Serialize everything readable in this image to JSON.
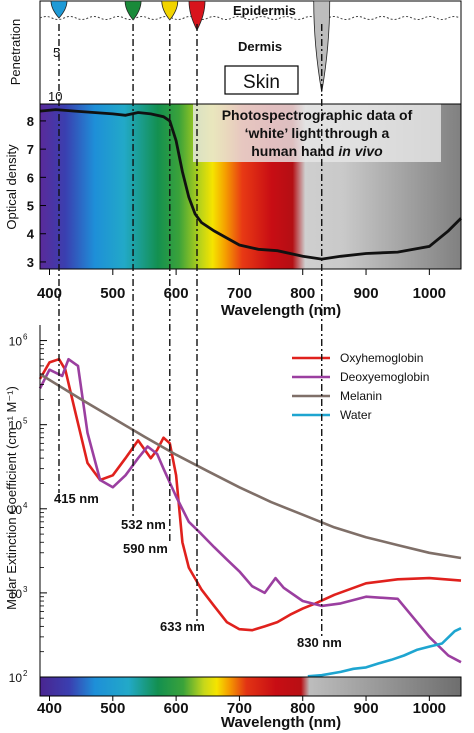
{
  "chart_data": [
    {
      "type": "diagram",
      "ylabel": "Penetration",
      "y_ticks": [
        "5",
        "10"
      ],
      "layers": [
        "Epidermis",
        "Dermis"
      ],
      "box_label": "Skin",
      "wavelengths_nm": [
        415,
        532,
        590,
        633,
        830
      ],
      "marker_colors": [
        "#1f9ad6",
        "#1a8a3a",
        "#f2d400",
        "#d8141c",
        "#bdbdbd"
      ]
    },
    {
      "type": "line",
      "title_lines": [
        "Photospectrographic data of",
        "‘white’ light through a"
      ],
      "title_last_prefix": "human hand ",
      "title_last_italic": "in vivo",
      "xlabel": "Wavelength (nm)",
      "ylabel": "Optical density",
      "xlim": [
        385,
        1050
      ],
      "ylim": [
        2.75,
        8.6
      ],
      "x_ticks": [
        400,
        500,
        600,
        700,
        800,
        900,
        1000
      ],
      "y_ticks": [
        3,
        4,
        5,
        6,
        7,
        8
      ],
      "series": [
        {
          "x": [
            385,
            410,
            440,
            470,
            500,
            520,
            540,
            560,
            580,
            590,
            600,
            610,
            620,
            630,
            640,
            660,
            680,
            700,
            730,
            760,
            800,
            830,
            860,
            900,
            950,
            1000,
            1030,
            1050
          ],
          "y": [
            8.35,
            8.4,
            8.35,
            8.3,
            8.25,
            8.2,
            8.3,
            8.25,
            8.15,
            8.0,
            7.3,
            6.2,
            5.3,
            4.7,
            4.4,
            4.1,
            3.85,
            3.6,
            3.45,
            3.4,
            3.2,
            3.1,
            3.2,
            3.3,
            3.35,
            3.55,
            4.1,
            4.55
          ]
        }
      ]
    },
    {
      "type": "line",
      "xlabel": "Wavelength (nm)",
      "ylabel": "Molar Extinction Coefficient (cm⁻¹ M⁻¹)",
      "yscale": "log",
      "xlim": [
        385,
        1050
      ],
      "ylim": [
        100,
        1300000
      ],
      "x_ticks": [
        400,
        500,
        600,
        700,
        800,
        900,
        1000
      ],
      "y_tick_bases": [
        "10",
        "10",
        "10",
        "10",
        "10"
      ],
      "y_tick_exps": [
        "2",
        "3",
        "4",
        "5",
        "6"
      ],
      "legend_position": "top-right",
      "series": [
        {
          "name": "Oxyhemoglobin",
          "color": "#e0211d",
          "x": [
            385,
            400,
            415,
            425,
            440,
            460,
            480,
            500,
            520,
            540,
            560,
            570,
            580,
            590,
            600,
            610,
            620,
            640,
            660,
            680,
            700,
            720,
            740,
            760,
            780,
            800,
            820,
            850,
            900,
            950,
            1000,
            1050
          ],
          "y": [
            350000,
            550000,
            600000,
            450000,
            150000,
            35000,
            22000,
            25000,
            40000,
            65000,
            40000,
            50000,
            70000,
            60000,
            25000,
            4000,
            2000,
            1100,
            700,
            450,
            370,
            360,
            400,
            450,
            550,
            650,
            750,
            950,
            1300,
            1450,
            1500,
            1400
          ]
        },
        {
          "name": "Deoxyemoglobin",
          "color": "#9b3fa0",
          "x": [
            385,
            400,
            420,
            430,
            445,
            460,
            480,
            500,
            520,
            540,
            555,
            570,
            580,
            600,
            620,
            640,
            660,
            680,
            700,
            720,
            740,
            757,
            770,
            800,
            830,
            860,
            900,
            950,
            1000,
            1030,
            1050
          ],
          "y": [
            270000,
            450000,
            380000,
            600000,
            500000,
            80000,
            22000,
            18000,
            25000,
            40000,
            55000,
            45000,
            30000,
            14000,
            7000,
            5000,
            3500,
            2500,
            1800,
            1200,
            1000,
            1500,
            1150,
            800,
            700,
            750,
            900,
            850,
            300,
            180,
            150
          ]
        },
        {
          "name": "Melanin",
          "color": "#7f6f68",
          "x": [
            385,
            450,
            500,
            550,
            600,
            650,
            700,
            750,
            800,
            850,
            900,
            950,
            1000,
            1050
          ],
          "y": [
            400000,
            200000,
            120000,
            72000,
            44000,
            28000,
            18000,
            12000,
            8500,
            6000,
            4600,
            3700,
            3000,
            2600
          ]
        },
        {
          "name": "Water",
          "color": "#1ea5d0",
          "x": [
            808,
            830,
            860,
            880,
            900,
            920,
            940,
            960,
            980,
            1000,
            1020,
            1040,
            1050
          ],
          "y": [
            102,
            105,
            115,
            125,
            130,
            145,
            160,
            180,
            210,
            230,
            250,
            350,
            380
          ]
        }
      ],
      "annotations": [
        "415 nm",
        "532 nm",
        "590 nm",
        "633 nm",
        "830 nm"
      ]
    }
  ]
}
